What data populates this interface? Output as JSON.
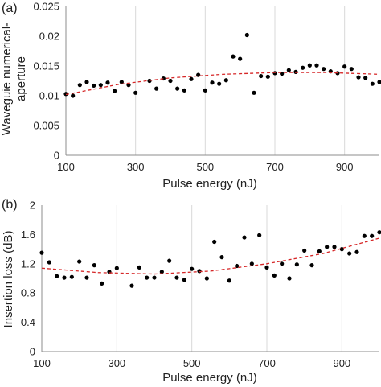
{
  "chart_data": [
    {
      "type": "scatter",
      "panel_label": "(a)",
      "xlabel": "Pulse energy (nJ)",
      "ylabel_lines": [
        "Waveguie numerical-",
        "aperture"
      ],
      "xlim": [
        100,
        1000
      ],
      "ylim": [
        0,
        0.025
      ],
      "xticks": [
        100,
        300,
        500,
        700,
        900
      ],
      "xtick_labels": [
        "100",
        "300",
        "500",
        "700",
        "900"
      ],
      "yticks": [
        0,
        0.005,
        0.01,
        0.015,
        0.02,
        0.025
      ],
      "ytick_labels": [
        "0",
        "0.005",
        "0.01",
        "0.015",
        "0.02",
        "0.025"
      ],
      "grid": "vertical",
      "series": [
        {
          "marker": "dot",
          "color": "#000000",
          "x": [
            100,
            120,
            140,
            160,
            180,
            200,
            220,
            240,
            260,
            280,
            300,
            340,
            360,
            380,
            400,
            420,
            440,
            460,
            480,
            500,
            520,
            540,
            560,
            580,
            600,
            620,
            640,
            660,
            680,
            700,
            720,
            740,
            760,
            780,
            800,
            820,
            840,
            860,
            880,
            900,
            920,
            940,
            960,
            980,
            1000
          ],
          "y": [
            0.0103,
            0.01,
            0.0118,
            0.0123,
            0.0117,
            0.0118,
            0.0122,
            0.0108,
            0.0123,
            0.0118,
            0.0105,
            0.0125,
            0.0112,
            0.0129,
            0.0125,
            0.0112,
            0.0109,
            0.0128,
            0.0135,
            0.0109,
            0.0122,
            0.012,
            0.0126,
            0.0166,
            0.0162,
            0.0202,
            0.0105,
            0.0133,
            0.0132,
            0.0138,
            0.0137,
            0.0143,
            0.014,
            0.0147,
            0.0151,
            0.0151,
            0.0145,
            0.0141,
            0.0138,
            0.0149,
            0.0145,
            0.0131,
            0.013,
            0.012,
            0.0123
          ]
        },
        {
          "type": "line",
          "style": "dashed",
          "color": "#d62728",
          "x": [
            100,
            250,
            400,
            550,
            700,
            850,
            1000
          ],
          "y": [
            0.0102,
            0.0119,
            0.013,
            0.0136,
            0.0139,
            0.0139,
            0.0136
          ]
        }
      ]
    },
    {
      "type": "scatter",
      "panel_label": "(b)",
      "xlabel": "Pulse energy (nJ)",
      "ylabel_lines": [
        "Insertion loss (dB)"
      ],
      "xlim": [
        100,
        1000
      ],
      "ylim": [
        0,
        2
      ],
      "xticks": [
        100,
        300,
        500,
        700,
        900
      ],
      "xtick_labels": [
        "100",
        "300",
        "500",
        "700",
        "900"
      ],
      "yticks": [
        0,
        0.4,
        0.8,
        1.2,
        1.6,
        2
      ],
      "ytick_labels": [
        "0",
        "0.4",
        "0.8",
        "1.2",
        "1.6",
        "2"
      ],
      "grid": "vertical",
      "series": [
        {
          "marker": "dot",
          "color": "#000000",
          "x": [
            100,
            120,
            140,
            160,
            180,
            200,
            220,
            240,
            260,
            280,
            300,
            340,
            360,
            380,
            400,
            420,
            440,
            460,
            480,
            500,
            520,
            540,
            560,
            580,
            600,
            620,
            640,
            660,
            680,
            700,
            720,
            740,
            760,
            780,
            800,
            820,
            840,
            860,
            880,
            900,
            920,
            940,
            960,
            980,
            1000
          ],
          "y": [
            1.35,
            1.22,
            1.03,
            1.01,
            1.02,
            1.23,
            1.01,
            1.18,
            0.93,
            1.09,
            1.14,
            0.9,
            1.15,
            1.01,
            1.01,
            1.09,
            1.24,
            1.01,
            0.98,
            1.13,
            1.1,
            1.0,
            1.5,
            1.29,
            0.97,
            1.17,
            1.56,
            1.2,
            1.59,
            1.15,
            1.04,
            1.2,
            1.0,
            1.19,
            1.38,
            1.18,
            1.37,
            1.43,
            1.43,
            1.4,
            1.34,
            1.36,
            1.58,
            1.58,
            1.63
          ]
        },
        {
          "type": "line",
          "style": "dashed",
          "color": "#d62728",
          "x": [
            100,
            250,
            400,
            550,
            700,
            850,
            1000
          ],
          "y": [
            1.14,
            1.08,
            1.06,
            1.1,
            1.2,
            1.34,
            1.55
          ]
        }
      ]
    }
  ]
}
